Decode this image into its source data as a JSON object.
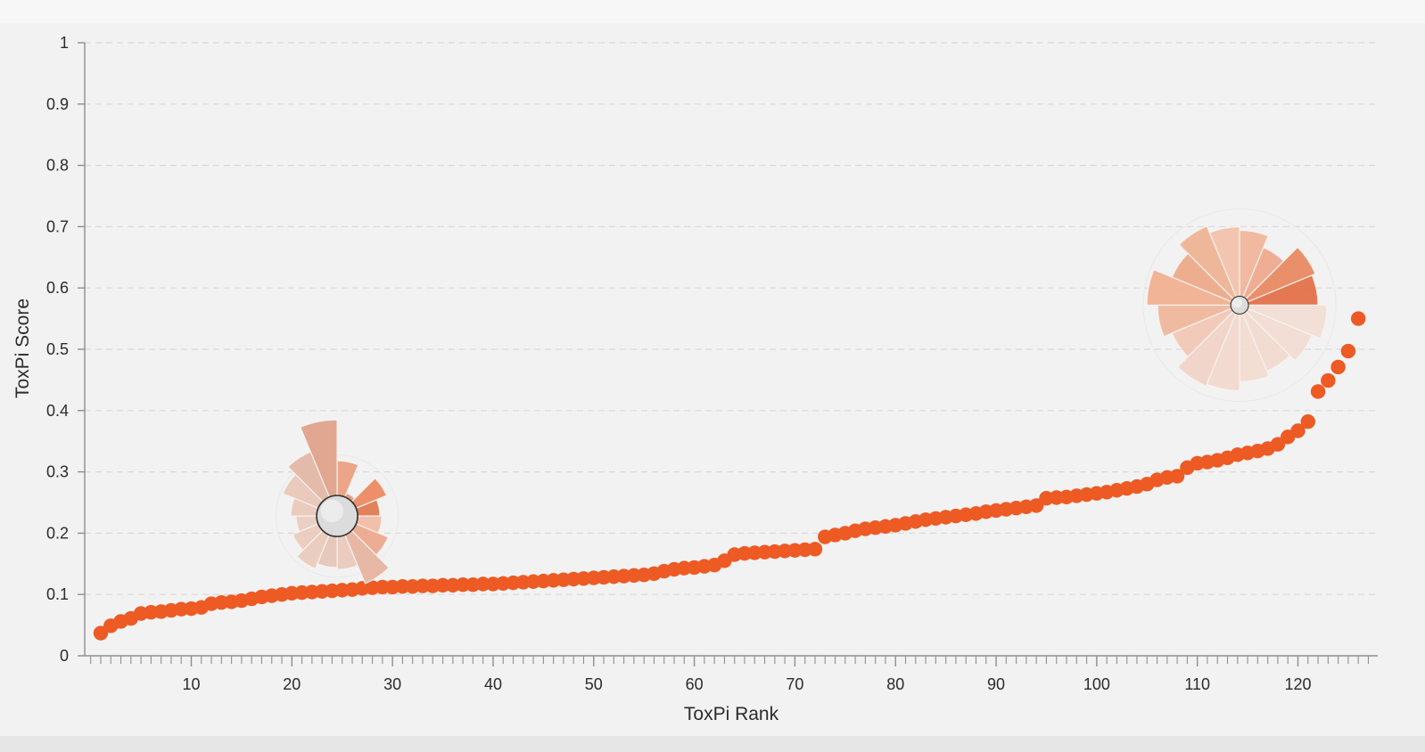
{
  "chart_data": {
    "type": "scatter",
    "title": "",
    "xlabel": "ToxPi Rank",
    "ylabel": "ToxPi Score",
    "xlim": [
      0,
      127
    ],
    "ylim": [
      0,
      1
    ],
    "x_ticks": [
      "10",
      "20",
      "30",
      "40",
      "50",
      "60",
      "70",
      "80",
      "90",
      "100",
      "110",
      "120"
    ],
    "y_ticks": [
      "0",
      "0.1",
      "0.2",
      "0.3",
      "0.4",
      "0.5",
      "0.6",
      "0.7",
      "0.8",
      "0.9",
      "1"
    ],
    "grid": "horizontal dashed",
    "legend": "none",
    "series": [
      {
        "color": "#ed5a24",
        "x": [
          1,
          2,
          3,
          4,
          5,
          6,
          7,
          8,
          9,
          10,
          11,
          12,
          13,
          14,
          15,
          16,
          17,
          18,
          19,
          20,
          21,
          22,
          23,
          24,
          25,
          26,
          27,
          28,
          29,
          30,
          31,
          32,
          33,
          34,
          35,
          36,
          37,
          38,
          39,
          40,
          41,
          42,
          43,
          44,
          45,
          46,
          47,
          48,
          49,
          50,
          51,
          52,
          53,
          54,
          55,
          56,
          57,
          58,
          59,
          60,
          61,
          62,
          63,
          64,
          65,
          66,
          67,
          68,
          69,
          70,
          71,
          72,
          73,
          74,
          75,
          76,
          77,
          78,
          79,
          80,
          81,
          82,
          83,
          84,
          85,
          86,
          87,
          88,
          89,
          90,
          91,
          92,
          93,
          94,
          95,
          96,
          97,
          98,
          99,
          100,
          101,
          102,
          103,
          104,
          105,
          106,
          107,
          108,
          109,
          110,
          111,
          112,
          113,
          114,
          115,
          116,
          117,
          118,
          119,
          120,
          121,
          122,
          123,
          124,
          125,
          126
        ],
        "y": [
          0.037,
          0.049,
          0.056,
          0.061,
          0.069,
          0.071,
          0.072,
          0.074,
          0.076,
          0.077,
          0.079,
          0.085,
          0.087,
          0.088,
          0.09,
          0.093,
          0.096,
          0.098,
          0.1,
          0.102,
          0.103,
          0.104,
          0.105,
          0.106,
          0.107,
          0.108,
          0.11,
          0.111,
          0.112,
          0.112,
          0.113,
          0.113,
          0.114,
          0.114,
          0.115,
          0.115,
          0.116,
          0.116,
          0.117,
          0.117,
          0.118,
          0.119,
          0.12,
          0.121,
          0.122,
          0.123,
          0.124,
          0.125,
          0.126,
          0.127,
          0.128,
          0.129,
          0.13,
          0.131,
          0.132,
          0.134,
          0.138,
          0.141,
          0.143,
          0.144,
          0.146,
          0.148,
          0.155,
          0.165,
          0.167,
          0.168,
          0.169,
          0.17,
          0.171,
          0.172,
          0.173,
          0.174,
          0.194,
          0.197,
          0.2,
          0.204,
          0.207,
          0.209,
          0.211,
          0.213,
          0.216,
          0.219,
          0.222,
          0.224,
          0.226,
          0.228,
          0.23,
          0.232,
          0.235,
          0.237,
          0.239,
          0.241,
          0.243,
          0.245,
          0.257,
          0.258,
          0.259,
          0.261,
          0.263,
          0.265,
          0.267,
          0.27,
          0.273,
          0.276,
          0.28,
          0.287,
          0.291,
          0.293,
          0.307,
          0.314,
          0.316,
          0.319,
          0.323,
          0.328,
          0.331,
          0.334,
          0.338,
          0.345,
          0.357,
          0.367,
          0.382,
          0.431,
          0.449,
          0.471,
          0.497,
          0.55
        ]
      }
    ],
    "glyphs": [
      {
        "at_rank": 24.5,
        "at_score": 0.228,
        "slices": 16,
        "scale": 0.6
      },
      {
        "at_rank": 114.2,
        "at_score": 0.572,
        "slices": 16,
        "scale": 1.0
      }
    ]
  }
}
